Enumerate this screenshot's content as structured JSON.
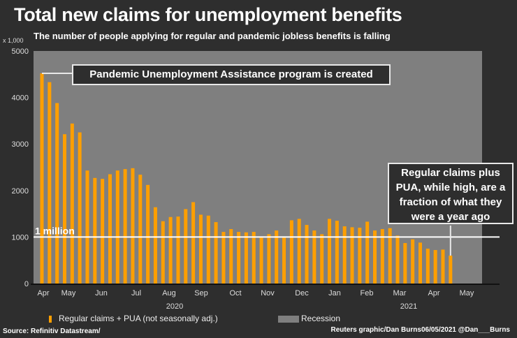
{
  "title": "Total new claims for unemployment benefits",
  "subtitle": "The number of people applying for regular and pandemic jobless benefits is falling",
  "source": "Source: Refinitiv Datastream/",
  "credit": "Reuters graphic/Dan Burns06/05/2021 @Dan___Burns",
  "colors": {
    "bars": "#ff9f00",
    "recession": "#7f7f7f",
    "background": "#2e2e2e",
    "reference_line": "#ffffff"
  },
  "chart_data": {
    "type": "bar",
    "title": "Total new claims for unemployment benefits",
    "ylabel": "x 1,000",
    "ylim": [
      0,
      5000
    ],
    "yticks": [
      "0",
      "1000",
      "2000",
      "3000",
      "4000",
      "5000"
    ],
    "x_tick_labels": [
      "Apr",
      "May",
      "Jun",
      "Jul",
      "Aug",
      "Sep",
      "Oct",
      "Nov",
      "Dec",
      "Jan",
      "Feb",
      "Mar",
      "Apr",
      "May"
    ],
    "year_labels": [
      "2020",
      "2021"
    ],
    "grid": false,
    "legend_position": "bottom",
    "series": [
      {
        "name": "Regular claims + PUA (not seasonally adj.)",
        "values": [
          4520,
          4330,
          3880,
          3210,
          3440,
          3250,
          2430,
          2270,
          2250,
          2350,
          2430,
          2460,
          2480,
          2340,
          2120,
          1640,
          1340,
          1430,
          1440,
          1600,
          1750,
          1480,
          1460,
          1320,
          1110,
          1170,
          1110,
          1100,
          1110,
          1000,
          1060,
          1140,
          990,
          1360,
          1390,
          1260,
          1140,
          1060,
          1390,
          1350,
          1230,
          1210,
          1200,
          1330,
          1140,
          1170,
          1190,
          1030,
          870,
          950,
          880,
          750,
          720,
          730,
          600
        ]
      }
    ],
    "shaded_region": {
      "name": "Recession"
    },
    "reference_line": {
      "value": 1000,
      "label": "1 million"
    },
    "annotations": [
      "Pandemic Unemployment Assistance program is created",
      "Regular claims plus PUA, while high, are a fraction of what they were a year ago"
    ]
  }
}
